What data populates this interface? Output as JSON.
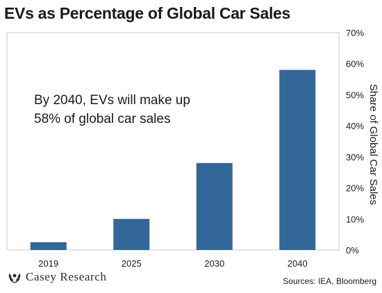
{
  "chart_data": {
    "type": "bar",
    "title": "EVs as Percentage of Global Car Sales",
    "categories": [
      "2019",
      "2025",
      "2030",
      "2040"
    ],
    "values": [
      2.5,
      10,
      28,
      58
    ],
    "ylabel": "Share of Global Car Sales",
    "ylim": [
      0,
      70
    ],
    "yticks": [
      "0%",
      "10%",
      "20%",
      "30%",
      "40%",
      "50%",
      "60%",
      "70%"
    ],
    "y_axis_side": "right",
    "bar_color": "#336699",
    "grid": false,
    "annotation": [
      "By 2040, EVs will make up",
      "58% of global car sales"
    ]
  },
  "footer": {
    "logo_text": "Casey Research",
    "source": "Sources: IEA, Bloomberg"
  },
  "colors": {
    "bar": "#336699",
    "frame": "#c8c8c8"
  }
}
